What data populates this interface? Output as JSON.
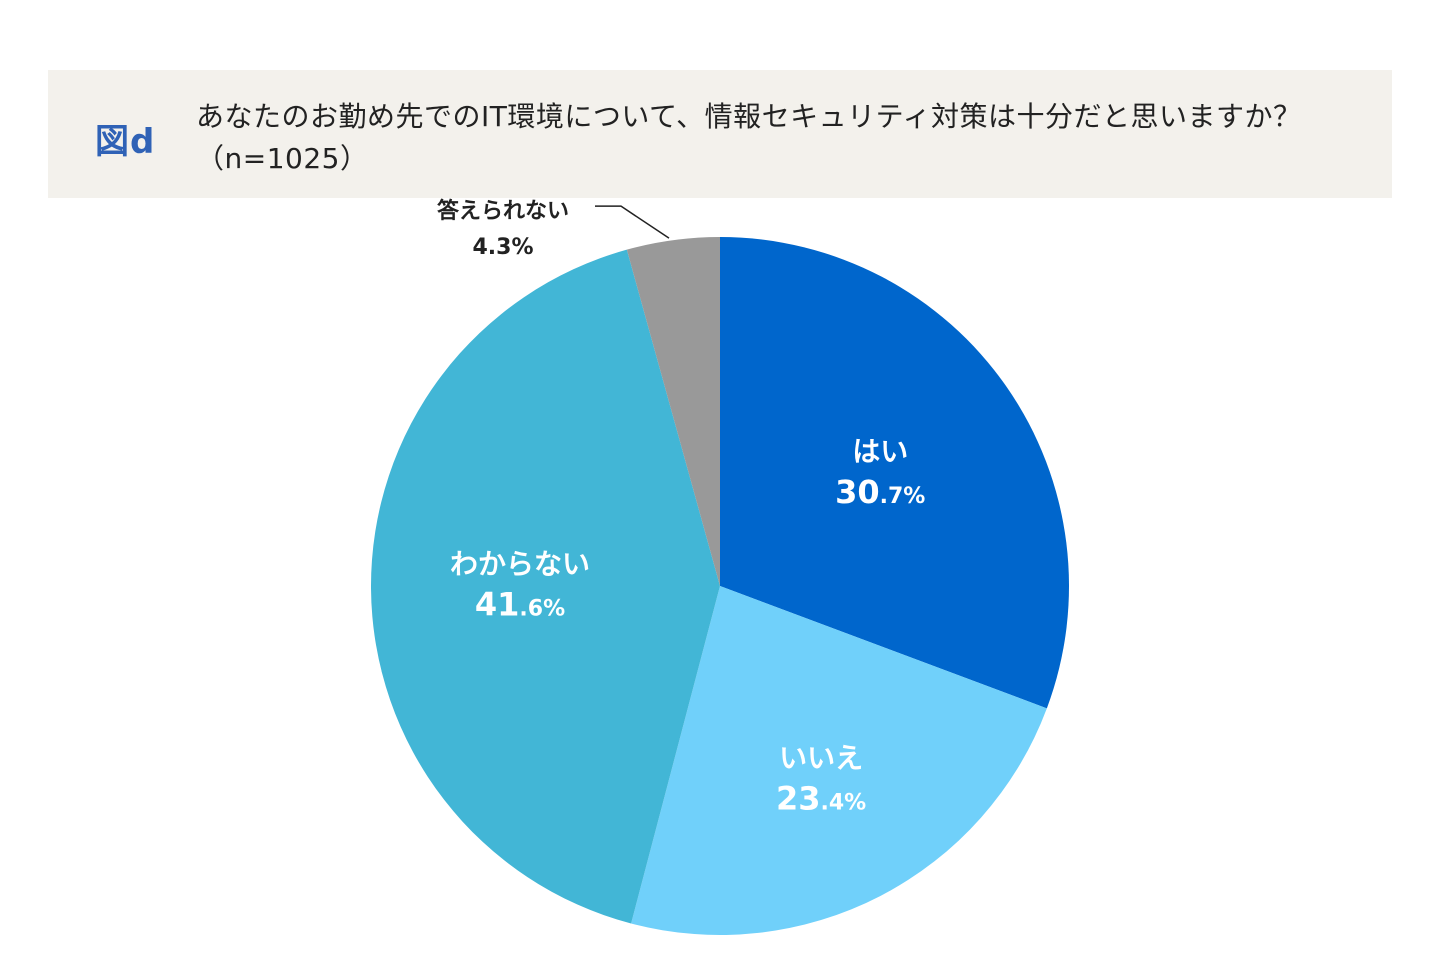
{
  "header": {
    "figure_label": "図d",
    "question": "あなたのお勤め先でのIT環境について、情報セキュリティ対策は十分だと思いますか？（n=1025）"
  },
  "chart_data": {
    "type": "pie",
    "title": "あなたのお勤め先でのIT環境について、情報セキュリティ対策は十分だと思いますか？（n=1025）",
    "sample_size": "n=1025",
    "categories": [
      "はい",
      "いいえ",
      "わからない",
      "答えられない"
    ],
    "values": [
      30.7,
      23.4,
      41.6,
      4.3
    ],
    "unit": "%",
    "start_angle": "12 o'clock",
    "direction": "clockwise",
    "colors": [
      "#0066cc",
      "#70d0fa",
      "#42b6d6",
      "#999999"
    ],
    "labels": [
      {
        "name": "はい",
        "int": "30",
        "dec": ".7%"
      },
      {
        "name": "いいえ",
        "int": "23",
        "dec": ".4%"
      },
      {
        "name": "わからない",
        "int": "41",
        "dec": ".6%"
      },
      {
        "name": "答えられない",
        "full": "4.3%"
      }
    ]
  }
}
